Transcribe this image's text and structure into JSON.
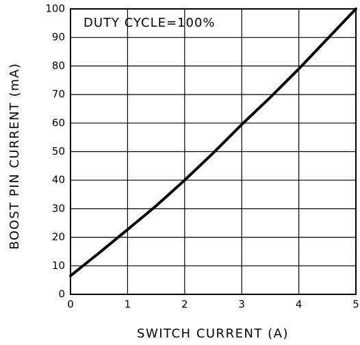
{
  "chart_data": {
    "type": "line",
    "annotation": "DUTY CYCLE=100%",
    "x_label": "SWITCH CURRENT (A)",
    "y_label": "BOOST PIN CURRENT (mA)",
    "series": [
      {
        "name": "Boost pin current",
        "color": "#000000",
        "x": [
          0,
          0.5,
          1,
          1.5,
          2,
          2.5,
          3,
          3.5,
          4,
          4.5,
          5
        ],
        "values": [
          6.5,
          14.5,
          22.7,
          31,
          40,
          49.5,
          59.5,
          69,
          79,
          89.5,
          100
        ]
      }
    ],
    "xlim": [
      0,
      5
    ],
    "xticks": [
      0,
      1,
      2,
      3,
      4,
      5
    ],
    "ylim": [
      0,
      100
    ],
    "yticks": [
      0,
      10,
      20,
      30,
      40,
      50,
      60,
      70,
      80,
      90,
      100
    ],
    "grid": true
  }
}
